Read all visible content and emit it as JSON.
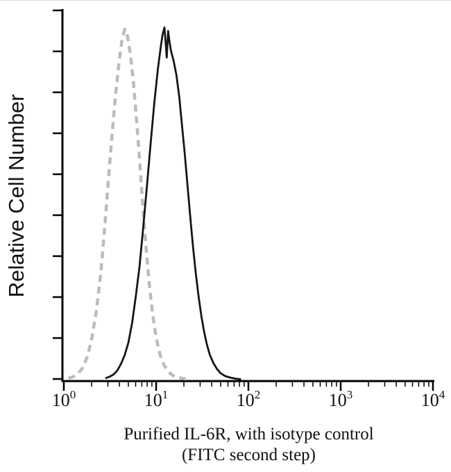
{
  "figure": {
    "caption_line1": "Purified IL-6R, with isotype control",
    "caption_line2": "(FITC second step)"
  },
  "colors": {
    "background": "#ffffff",
    "axis": "#000000",
    "text": "#111111",
    "solid_series": "#161616",
    "dashed_series": "#bcbcbc"
  },
  "chart_data": {
    "type": "line",
    "subtype": "flow-cytometry-histogram",
    "title": "",
    "xlabel": "Purified IL-6R, with isotype control (FITC second step)",
    "ylabel": "Relative Cell Number",
    "x_scale": "log10",
    "x_range_log": [
      0,
      4
    ],
    "x_tick_exponents": [
      0,
      1,
      2,
      3,
      4
    ],
    "y_axis": {
      "label": "Relative Cell Number",
      "ticks_count": 10,
      "tick_labels_shown": false
    },
    "grid": false,
    "legend": "none",
    "series": [
      {
        "name": "isotype control",
        "style": "dashed",
        "color": "#bcbcbc",
        "stroke_width": 4.5,
        "dash": [
          10,
          7
        ],
        "points_logx_y": [
          [
            0.05,
            0.004
          ],
          [
            0.1,
            0.008
          ],
          [
            0.15,
            0.016
          ],
          [
            0.2,
            0.032
          ],
          [
            0.25,
            0.062
          ],
          [
            0.3,
            0.112
          ],
          [
            0.35,
            0.19
          ],
          [
            0.4,
            0.3
          ],
          [
            0.44,
            0.42
          ],
          [
            0.48,
            0.555
          ],
          [
            0.52,
            0.685
          ],
          [
            0.56,
            0.805
          ],
          [
            0.6,
            0.9
          ],
          [
            0.63,
            0.96
          ],
          [
            0.66,
            0.99
          ],
          [
            0.69,
            0.97
          ],
          [
            0.72,
            0.92
          ],
          [
            0.75,
            0.85
          ],
          [
            0.78,
            0.76
          ],
          [
            0.81,
            0.66
          ],
          [
            0.84,
            0.55
          ],
          [
            0.87,
            0.44
          ],
          [
            0.9,
            0.345
          ],
          [
            0.93,
            0.26
          ],
          [
            0.96,
            0.19
          ],
          [
            0.99,
            0.135
          ],
          [
            1.02,
            0.095
          ],
          [
            1.05,
            0.065
          ],
          [
            1.08,
            0.044
          ],
          [
            1.12,
            0.027
          ],
          [
            1.16,
            0.016
          ],
          [
            1.2,
            0.009
          ],
          [
            1.26,
            0.005
          ],
          [
            1.32,
            0.002
          ]
        ]
      },
      {
        "name": "Purified IL-6R",
        "style": "solid",
        "color": "#161616",
        "stroke_width": 2.8,
        "points_logx_y": [
          [
            0.45,
            0.004
          ],
          [
            0.5,
            0.009
          ],
          [
            0.54,
            0.015
          ],
          [
            0.58,
            0.026
          ],
          [
            0.62,
            0.045
          ],
          [
            0.66,
            0.07
          ],
          [
            0.7,
            0.105
          ],
          [
            0.74,
            0.16
          ],
          [
            0.78,
            0.235
          ],
          [
            0.82,
            0.32
          ],
          [
            0.86,
            0.43
          ],
          [
            0.9,
            0.545
          ],
          [
            0.94,
            0.665
          ],
          [
            0.98,
            0.78
          ],
          [
            1.02,
            0.88
          ],
          [
            1.05,
            0.94
          ],
          [
            1.07,
            0.975
          ],
          [
            1.09,
            0.995
          ],
          [
            1.105,
            0.945
          ],
          [
            1.115,
            0.91
          ],
          [
            1.13,
            0.985
          ],
          [
            1.145,
            0.955
          ],
          [
            1.16,
            0.93
          ],
          [
            1.19,
            0.9
          ],
          [
            1.22,
            0.86
          ],
          [
            1.25,
            0.8
          ],
          [
            1.28,
            0.72
          ],
          [
            1.31,
            0.64
          ],
          [
            1.34,
            0.55
          ],
          [
            1.37,
            0.46
          ],
          [
            1.4,
            0.375
          ],
          [
            1.43,
            0.3
          ],
          [
            1.46,
            0.235
          ],
          [
            1.49,
            0.18
          ],
          [
            1.52,
            0.135
          ],
          [
            1.55,
            0.1
          ],
          [
            1.58,
            0.072
          ],
          [
            1.62,
            0.047
          ],
          [
            1.66,
            0.03
          ],
          [
            1.7,
            0.018
          ],
          [
            1.75,
            0.01
          ],
          [
            1.8,
            0.006
          ],
          [
            1.86,
            0.003
          ],
          [
            1.92,
            0.001
          ]
        ]
      }
    ]
  }
}
